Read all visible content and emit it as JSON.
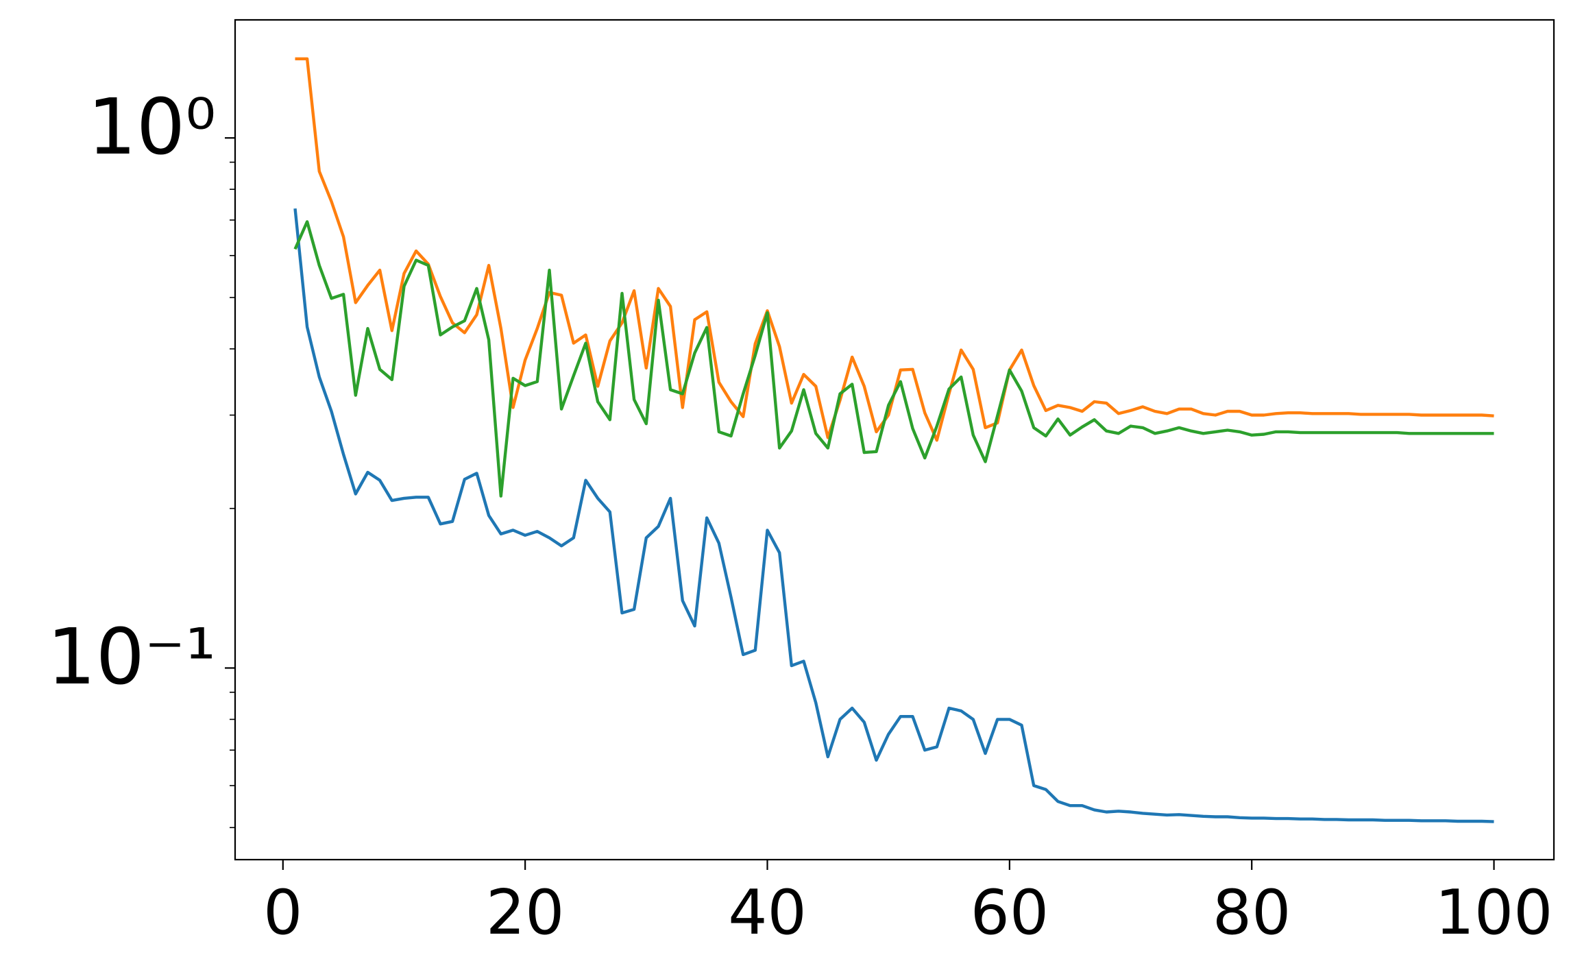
{
  "chart_data": {
    "type": "line",
    "yscale": "log",
    "x": [
      1,
      2,
      3,
      4,
      5,
      6,
      7,
      8,
      9,
      10,
      11,
      12,
      13,
      14,
      15,
      16,
      17,
      18,
      19,
      20,
      21,
      22,
      23,
      24,
      25,
      26,
      27,
      28,
      29,
      30,
      31,
      32,
      33,
      34,
      35,
      36,
      37,
      38,
      39,
      40,
      41,
      42,
      43,
      44,
      45,
      46,
      47,
      48,
      49,
      50,
      51,
      52,
      53,
      54,
      55,
      56,
      57,
      58,
      59,
      60,
      61,
      62,
      63,
      64,
      65,
      66,
      67,
      68,
      69,
      70,
      71,
      72,
      73,
      74,
      75,
      76,
      77,
      78,
      79,
      80,
      81,
      82,
      83,
      84,
      85,
      86,
      87,
      88,
      89,
      90,
      91,
      92,
      93,
      94,
      95,
      96,
      97,
      98,
      99,
      100
    ],
    "series": [
      {
        "color": "#1f77b4",
        "values": [
          0.736,
          0.44,
          0.354,
          0.305,
          0.253,
          0.213,
          0.234,
          0.226,
          0.207,
          0.209,
          0.21,
          0.21,
          0.187,
          0.189,
          0.227,
          0.233,
          0.194,
          0.179,
          0.182,
          0.178,
          0.181,
          0.176,
          0.17,
          0.176,
          0.226,
          0.209,
          0.197,
          0.127,
          0.129,
          0.176,
          0.185,
          0.209,
          0.134,
          0.12,
          0.192,
          0.172,
          0.136,
          0.106,
          0.108,
          0.182,
          0.165,
          0.101,
          0.103,
          0.086,
          0.068,
          0.08,
          0.084,
          0.079,
          0.067,
          0.075,
          0.081,
          0.081,
          0.07,
          0.071,
          0.084,
          0.083,
          0.08,
          0.069,
          0.08,
          0.08,
          0.078,
          0.06,
          0.059,
          0.056,
          0.055,
          0.055,
          0.054,
          0.0535,
          0.0537,
          0.0535,
          0.0532,
          0.053,
          0.0528,
          0.0529,
          0.0527,
          0.0525,
          0.0524,
          0.0524,
          0.0522,
          0.0521,
          0.0521,
          0.052,
          0.052,
          0.0519,
          0.0519,
          0.0518,
          0.0518,
          0.0517,
          0.0517,
          0.0517,
          0.0516,
          0.0516,
          0.0516,
          0.0515,
          0.0515,
          0.0515,
          0.0514,
          0.0514,
          0.0514,
          0.0513
        ]
      },
      {
        "color": "#ff7f0e",
        "values": [
          1.41,
          1.41,
          0.865,
          0.759,
          0.651,
          0.489,
          0.527,
          0.563,
          0.433,
          0.555,
          0.612,
          0.578,
          0.502,
          0.448,
          0.429,
          0.464,
          0.575,
          0.437,
          0.31,
          0.381,
          0.437,
          0.511,
          0.505,
          0.41,
          0.425,
          0.34,
          0.414,
          0.448,
          0.515,
          0.368,
          0.52,
          0.481,
          0.31,
          0.454,
          0.47,
          0.346,
          0.318,
          0.298,
          0.409,
          0.472,
          0.404,
          0.316,
          0.358,
          0.34,
          0.272,
          0.32,
          0.386,
          0.34,
          0.279,
          0.3,
          0.365,
          0.366,
          0.303,
          0.269,
          0.329,
          0.398,
          0.366,
          0.284,
          0.29,
          0.365,
          0.398,
          0.341,
          0.306,
          0.313,
          0.31,
          0.305,
          0.318,
          0.316,
          0.302,
          0.306,
          0.311,
          0.305,
          0.302,
          0.308,
          0.308,
          0.302,
          0.3,
          0.305,
          0.305,
          0.3,
          0.3,
          0.302,
          0.303,
          0.303,
          0.302,
          0.302,
          0.302,
          0.302,
          0.301,
          0.301,
          0.301,
          0.301,
          0.301,
          0.3,
          0.3,
          0.3,
          0.3,
          0.3,
          0.3,
          0.299
        ]
      },
      {
        "color": "#2ca02c",
        "values": [
          0.617,
          0.695,
          0.575,
          0.498,
          0.507,
          0.327,
          0.437,
          0.366,
          0.35,
          0.525,
          0.588,
          0.575,
          0.425,
          0.44,
          0.452,
          0.52,
          0.416,
          0.211,
          0.352,
          0.341,
          0.347,
          0.563,
          0.308,
          0.356,
          0.41,
          0.318,
          0.294,
          0.509,
          0.321,
          0.289,
          0.494,
          0.335,
          0.329,
          0.393,
          0.439,
          0.279,
          0.274,
          0.329,
          0.389,
          0.468,
          0.26,
          0.28,
          0.335,
          0.277,
          0.26,
          0.329,
          0.343,
          0.255,
          0.256,
          0.313,
          0.347,
          0.283,
          0.249,
          0.286,
          0.336,
          0.354,
          0.275,
          0.245,
          0.299,
          0.365,
          0.333,
          0.284,
          0.274,
          0.295,
          0.275,
          0.285,
          0.294,
          0.28,
          0.277,
          0.286,
          0.284,
          0.277,
          0.28,
          0.284,
          0.28,
          0.277,
          0.279,
          0.281,
          0.279,
          0.275,
          0.276,
          0.279,
          0.279,
          0.278,
          0.278,
          0.278,
          0.278,
          0.278,
          0.278,
          0.278,
          0.278,
          0.278,
          0.277,
          0.277,
          0.277,
          0.277,
          0.277,
          0.277,
          0.277,
          0.277
        ]
      }
    ],
    "xlim": [
      -3.95,
      104.95
    ],
    "xticks": [
      0,
      20,
      40,
      60,
      80,
      100
    ],
    "ylim": [
      0.0435,
      1.67
    ],
    "yticks": [
      {
        "value": 0.1,
        "label": "10⁻¹"
      },
      {
        "value": 1,
        "label": "10⁰"
      }
    ],
    "yminorticks": [
      0.05,
      0.06,
      0.07,
      0.08,
      0.09,
      0.2,
      0.3,
      0.4,
      0.5,
      0.6,
      0.7,
      0.8,
      0.9
    ]
  }
}
